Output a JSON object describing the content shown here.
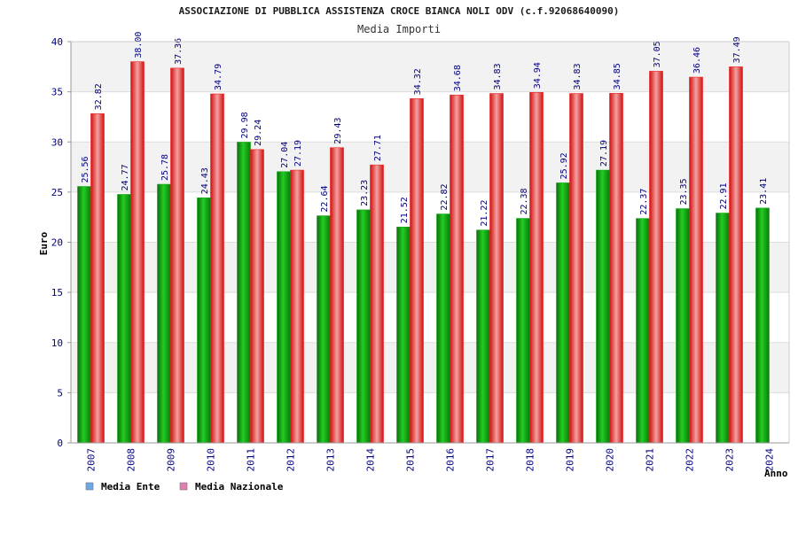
{
  "chart_data": {
    "type": "bar",
    "title": "ASSOCIAZIONE DI PUBBLICA ASSISTENZA CROCE BIANCA NOLI ODV (c.f.92068640090)",
    "subtitle": "Media Importi",
    "xlabel": "Anno",
    "ylabel": "Euro",
    "ylim": [
      0,
      40
    ],
    "yticks": [
      0,
      5,
      10,
      15,
      20,
      25,
      30,
      35,
      40
    ],
    "grid": true,
    "legend_position": "bottom-left",
    "categories": [
      "2007",
      "2008",
      "2009",
      "2010",
      "2011",
      "2012",
      "2013",
      "2014",
      "2015",
      "2016",
      "2017",
      "2018",
      "2019",
      "2020",
      "2021",
      "2022",
      "2023",
      "2024"
    ],
    "series": [
      {
        "name": "Media Ente",
        "legend_color": "#6aa8e8",
        "bar_color": "#11aa11",
        "values": [
          25.56,
          24.77,
          25.78,
          24.43,
          29.98,
          27.04,
          22.64,
          23.23,
          21.52,
          22.82,
          21.22,
          22.38,
          25.92,
          27.19,
          22.37,
          23.35,
          22.91,
          23.41
        ],
        "labels": [
          "25.56",
          "24.77",
          "25.78",
          "24.43",
          "29.98",
          "27.04",
          "22.64",
          "23.23",
          "21.52",
          "22.82",
          "21.22",
          "22.38",
          "25.92",
          "27.19",
          "22.37",
          "23.35",
          "22.91",
          "23.41"
        ]
      },
      {
        "name": "Media Nazionale",
        "legend_color": "#e080b0",
        "bar_color": "#ee2222",
        "values": [
          32.82,
          38.0,
          37.36,
          34.79,
          29.24,
          27.19,
          29.43,
          27.71,
          34.32,
          34.68,
          34.83,
          34.94,
          34.83,
          34.85,
          37.05,
          36.46,
          37.49,
          null
        ],
        "labels": [
          "32.82",
          "38.00",
          "37.36",
          "34.79",
          "29.24",
          "27.19",
          "29.43",
          "27.71",
          "34.32",
          "34.68",
          "34.83",
          "34.94",
          "34.83",
          "34.85",
          "37.05",
          "36.46",
          "37.49",
          null
        ]
      }
    ]
  }
}
